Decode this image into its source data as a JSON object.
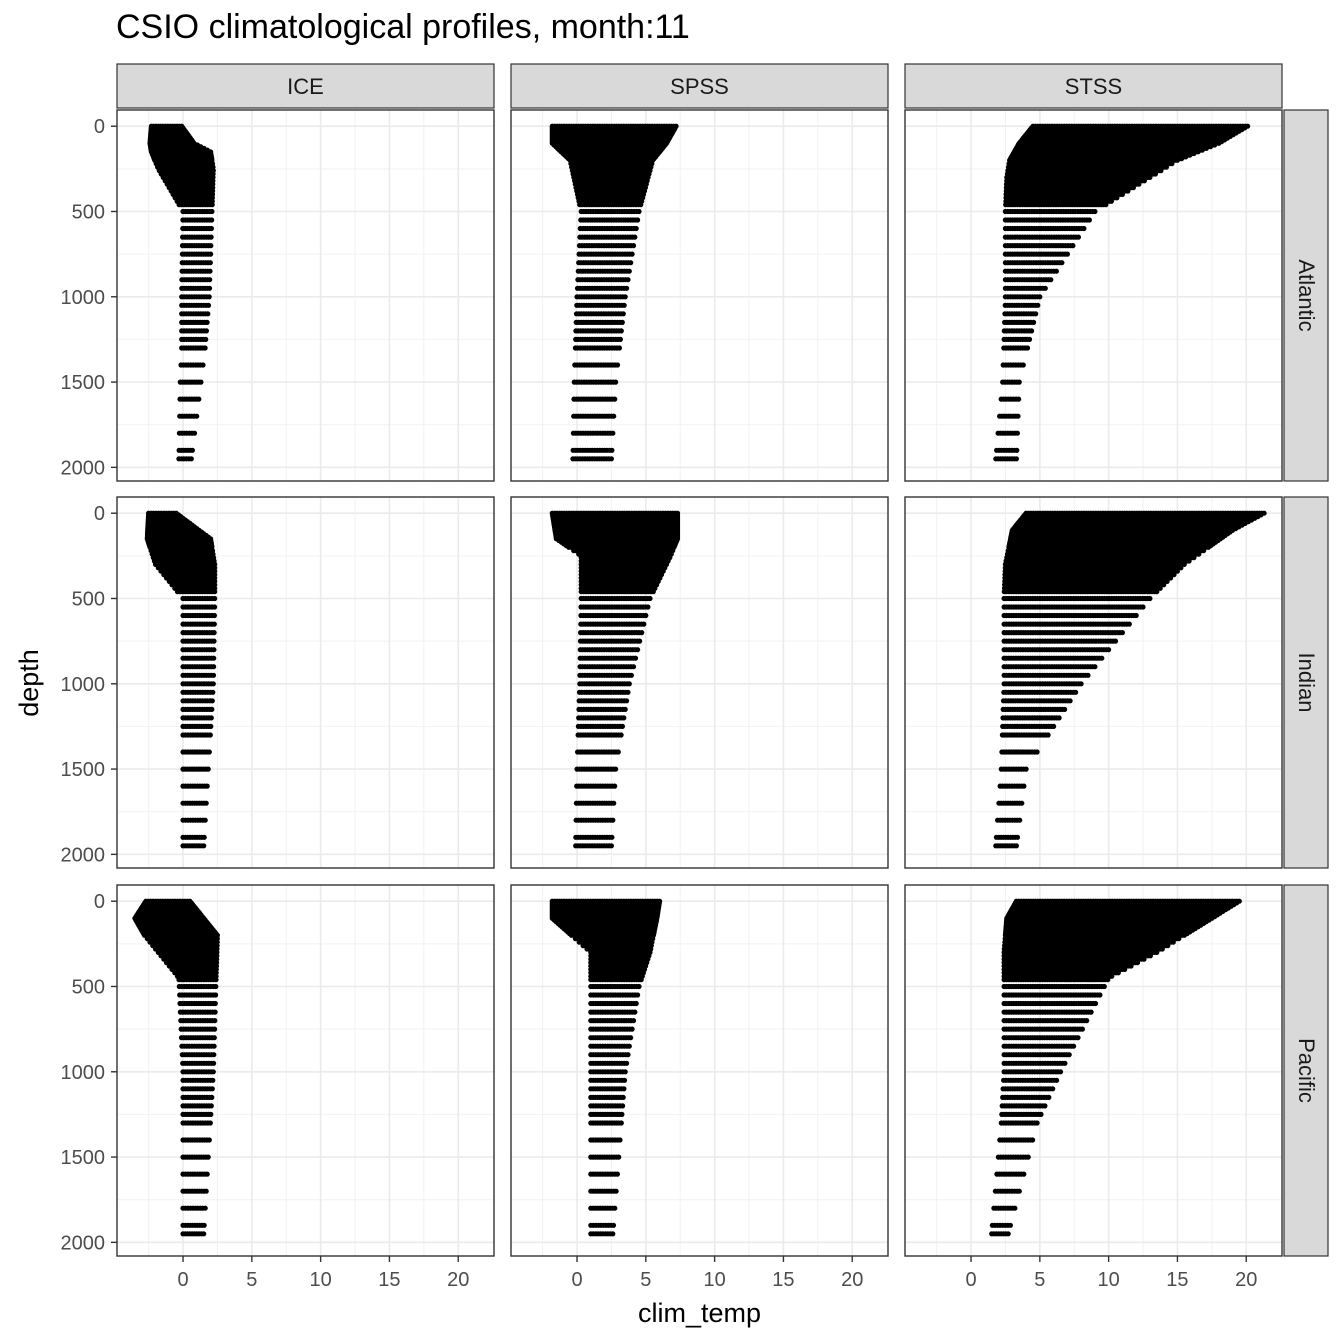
{
  "chart_data": {
    "type": "scatter",
    "title": "CSIO climatological profiles, month:11",
    "xlabel": "clim_temp",
    "ylabel": "depth",
    "xlim": [
      -4.8,
      22.6
    ],
    "ylim": [
      2080,
      -95
    ],
    "x_ticks": [
      0,
      5,
      10,
      15,
      20
    ],
    "y_ticks": [
      0,
      500,
      1000,
      1500,
      2000
    ],
    "grid": true,
    "facet_columns": [
      "ICE",
      "SPSS",
      "STSS"
    ],
    "facet_rows": [
      "Atlantic",
      "Indian",
      "Pacific"
    ],
    "depth_levels": [
      0,
      10,
      20,
      30,
      40,
      50,
      60,
      70,
      80,
      90,
      100,
      110,
      120,
      130,
      140,
      150,
      160,
      170,
      180,
      190,
      200,
      220,
      240,
      260,
      280,
      300,
      320,
      340,
      360,
      380,
      400,
      420,
      440,
      460,
      500,
      550,
      600,
      650,
      700,
      750,
      800,
      850,
      900,
      950,
      1000,
      1050,
      1100,
      1150,
      1200,
      1250,
      1300,
      1400,
      1500,
      1600,
      1700,
      1800,
      1900,
      1950
    ],
    "panels": [
      {
        "row": "Atlantic",
        "column": "ICE",
        "profile": [
          {
            "depth": 0,
            "min": -2.3,
            "max": -0.1
          },
          {
            "depth": 100,
            "min": -2.4,
            "max": 0.8
          },
          {
            "depth": 150,
            "min": -2.3,
            "max": 2.0
          },
          {
            "depth": 250,
            "min": -1.8,
            "max": 2.2
          },
          {
            "depth": 500,
            "min": 0.0,
            "max": 2.1
          },
          {
            "depth": 1000,
            "min": -0.1,
            "max": 1.9
          },
          {
            "depth": 1300,
            "min": -0.1,
            "max": 1.6
          },
          {
            "depth": 1500,
            "min": -0.2,
            "max": 1.3
          },
          {
            "depth": 1950,
            "min": -0.3,
            "max": 0.6
          }
        ]
      },
      {
        "row": "Atlantic",
        "column": "SPSS",
        "profile": [
          {
            "depth": 0,
            "min": -1.8,
            "max": 7.2
          },
          {
            "depth": 100,
            "min": -1.8,
            "max": 6.5
          },
          {
            "depth": 200,
            "min": -0.5,
            "max": 5.5
          },
          {
            "depth": 500,
            "min": 0.3,
            "max": 4.5
          },
          {
            "depth": 1000,
            "min": 0.0,
            "max": 3.5
          },
          {
            "depth": 1500,
            "min": -0.2,
            "max": 2.8
          },
          {
            "depth": 1950,
            "min": -0.3,
            "max": 2.5
          }
        ]
      },
      {
        "row": "Atlantic",
        "column": "STSS",
        "profile": [
          {
            "depth": 0,
            "min": 4.5,
            "max": 20.1
          },
          {
            "depth": 100,
            "min": 3.5,
            "max": 18.0
          },
          {
            "depth": 200,
            "min": 2.8,
            "max": 15.0
          },
          {
            "depth": 300,
            "min": 2.6,
            "max": 13.0
          },
          {
            "depth": 500,
            "min": 2.5,
            "max": 9.0
          },
          {
            "depth": 1000,
            "min": 2.5,
            "max": 5.0
          },
          {
            "depth": 1500,
            "min": 2.3,
            "max": 3.5
          },
          {
            "depth": 1950,
            "min": 1.8,
            "max": 3.3
          }
        ]
      },
      {
        "row": "Indian",
        "column": "ICE",
        "profile": [
          {
            "depth": 0,
            "min": -2.5,
            "max": -0.5
          },
          {
            "depth": 150,
            "min": -2.6,
            "max": 2.0
          },
          {
            "depth": 300,
            "min": -2.0,
            "max": 2.3
          },
          {
            "depth": 500,
            "min": 0.0,
            "max": 2.3
          },
          {
            "depth": 1000,
            "min": 0.0,
            "max": 2.2
          },
          {
            "depth": 1950,
            "min": 0.0,
            "max": 1.5
          }
        ]
      },
      {
        "row": "Indian",
        "column": "SPSS",
        "profile": [
          {
            "depth": 0,
            "min": -1.8,
            "max": 7.3
          },
          {
            "depth": 150,
            "min": -1.5,
            "max": 7.3
          },
          {
            "depth": 250,
            "min": 0.3,
            "max": 6.8
          },
          {
            "depth": 500,
            "min": 0.3,
            "max": 5.3
          },
          {
            "depth": 1000,
            "min": 0.2,
            "max": 3.8
          },
          {
            "depth": 1500,
            "min": 0.0,
            "max": 2.8
          },
          {
            "depth": 1950,
            "min": -0.1,
            "max": 2.5
          }
        ]
      },
      {
        "row": "Indian",
        "column": "STSS",
        "profile": [
          {
            "depth": 0,
            "min": 4.0,
            "max": 21.3
          },
          {
            "depth": 100,
            "min": 3.0,
            "max": 19.0
          },
          {
            "depth": 300,
            "min": 2.5,
            "max": 15.5
          },
          {
            "depth": 500,
            "min": 2.4,
            "max": 13.0
          },
          {
            "depth": 1000,
            "min": 2.4,
            "max": 8.0
          },
          {
            "depth": 1500,
            "min": 2.2,
            "max": 4.0
          },
          {
            "depth": 1950,
            "min": 1.8,
            "max": 3.3
          }
        ]
      },
      {
        "row": "Pacific",
        "column": "ICE",
        "profile": [
          {
            "depth": 0,
            "min": -2.7,
            "max": 0.5
          },
          {
            "depth": 100,
            "min": -3.5,
            "max": 1.5
          },
          {
            "depth": 200,
            "min": -2.8,
            "max": 2.5
          },
          {
            "depth": 450,
            "min": -0.3,
            "max": 2.4
          },
          {
            "depth": 1000,
            "min": 0.0,
            "max": 2.2
          },
          {
            "depth": 1950,
            "min": 0.0,
            "max": 1.5
          }
        ]
      },
      {
        "row": "Pacific",
        "column": "SPSS",
        "profile": [
          {
            "depth": 0,
            "min": -1.8,
            "max": 6.0
          },
          {
            "depth": 100,
            "min": -1.8,
            "max": 5.8
          },
          {
            "depth": 300,
            "min": 1.0,
            "max": 5.3
          },
          {
            "depth": 500,
            "min": 1.0,
            "max": 4.5
          },
          {
            "depth": 1000,
            "min": 1.0,
            "max": 3.5
          },
          {
            "depth": 1950,
            "min": 1.0,
            "max": 2.6
          }
        ]
      },
      {
        "row": "Pacific",
        "column": "STSS",
        "profile": [
          {
            "depth": 0,
            "min": 3.3,
            "max": 19.5
          },
          {
            "depth": 100,
            "min": 2.6,
            "max": 17.5
          },
          {
            "depth": 300,
            "min": 2.4,
            "max": 13.5
          },
          {
            "depth": 450,
            "min": 2.4,
            "max": 10.0
          },
          {
            "depth": 1000,
            "min": 2.4,
            "max": 6.5
          },
          {
            "depth": 1300,
            "min": 2.2,
            "max": 4.8
          },
          {
            "depth": 1950,
            "min": 1.5,
            "max": 2.7
          }
        ]
      }
    ]
  }
}
